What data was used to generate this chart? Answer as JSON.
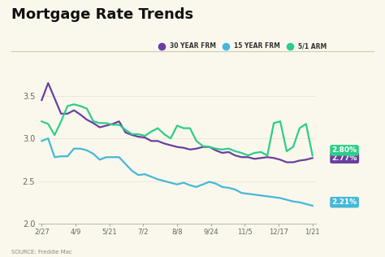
{
  "title": "Mortgage Rate Trends",
  "source": "SOURCE: Freddie Mac",
  "background_color": "#faf8ec",
  "plot_bg_color": "#faf8ec",
  "x_labels": [
    "2/27",
    "4/9",
    "5/21",
    "7/2",
    "8/8",
    "9/24",
    "11/5",
    "12/17",
    "1/21"
  ],
  "ylim": [
    2.0,
    3.75
  ],
  "yticks": [
    2.0,
    2.5,
    3.0,
    3.5
  ],
  "series": {
    "30yr": {
      "color": "#6b3fa0",
      "label": "30 YEAR FRM",
      "end_label": "2.77%",
      "values": [
        3.45,
        3.65,
        3.47,
        3.29,
        3.29,
        3.33,
        3.28,
        3.22,
        3.18,
        3.13,
        3.15,
        3.17,
        3.2,
        3.07,
        3.04,
        3.02,
        3.01,
        2.97,
        2.97,
        2.94,
        2.92,
        2.9,
        2.89,
        2.87,
        2.88,
        2.9,
        2.9,
        2.86,
        2.83,
        2.84,
        2.8,
        2.78,
        2.78,
        2.76,
        2.77,
        2.78,
        2.77,
        2.75,
        2.72,
        2.72,
        2.74,
        2.75,
        2.77
      ]
    },
    "15yr": {
      "color": "#45b8d8",
      "label": "15 YEAR FRM",
      "end_label": "2.21%",
      "values": [
        2.97,
        3.0,
        2.78,
        2.79,
        2.79,
        2.88,
        2.88,
        2.86,
        2.82,
        2.75,
        2.78,
        2.78,
        2.78,
        2.7,
        2.62,
        2.57,
        2.58,
        2.55,
        2.52,
        2.5,
        2.48,
        2.46,
        2.48,
        2.45,
        2.43,
        2.46,
        2.49,
        2.47,
        2.43,
        2.42,
        2.4,
        2.36,
        2.35,
        2.34,
        2.33,
        2.32,
        2.31,
        2.3,
        2.28,
        2.26,
        2.25,
        2.23,
        2.21
      ]
    },
    "arm": {
      "color": "#2ecc8a",
      "label": "5/1 ARM",
      "end_label": "2.80%",
      "values": [
        3.2,
        3.17,
        3.04,
        3.2,
        3.38,
        3.4,
        3.38,
        3.35,
        3.2,
        3.18,
        3.18,
        3.16,
        3.16,
        3.1,
        3.05,
        3.05,
        3.03,
        3.08,
        3.12,
        3.05,
        3.0,
        3.15,
        3.12,
        3.12,
        2.97,
        2.91,
        2.9,
        2.88,
        2.87,
        2.88,
        2.85,
        2.83,
        2.8,
        2.83,
        2.84,
        2.8,
        3.18,
        3.2,
        2.85,
        2.9,
        3.12,
        3.17,
        2.8
      ]
    }
  },
  "label_offsets": {
    "30yr": [
      0.04,
      -0.01
    ],
    "15yr": [
      0.04,
      0.04
    ],
    "arm": [
      0.04,
      0.06
    ]
  }
}
